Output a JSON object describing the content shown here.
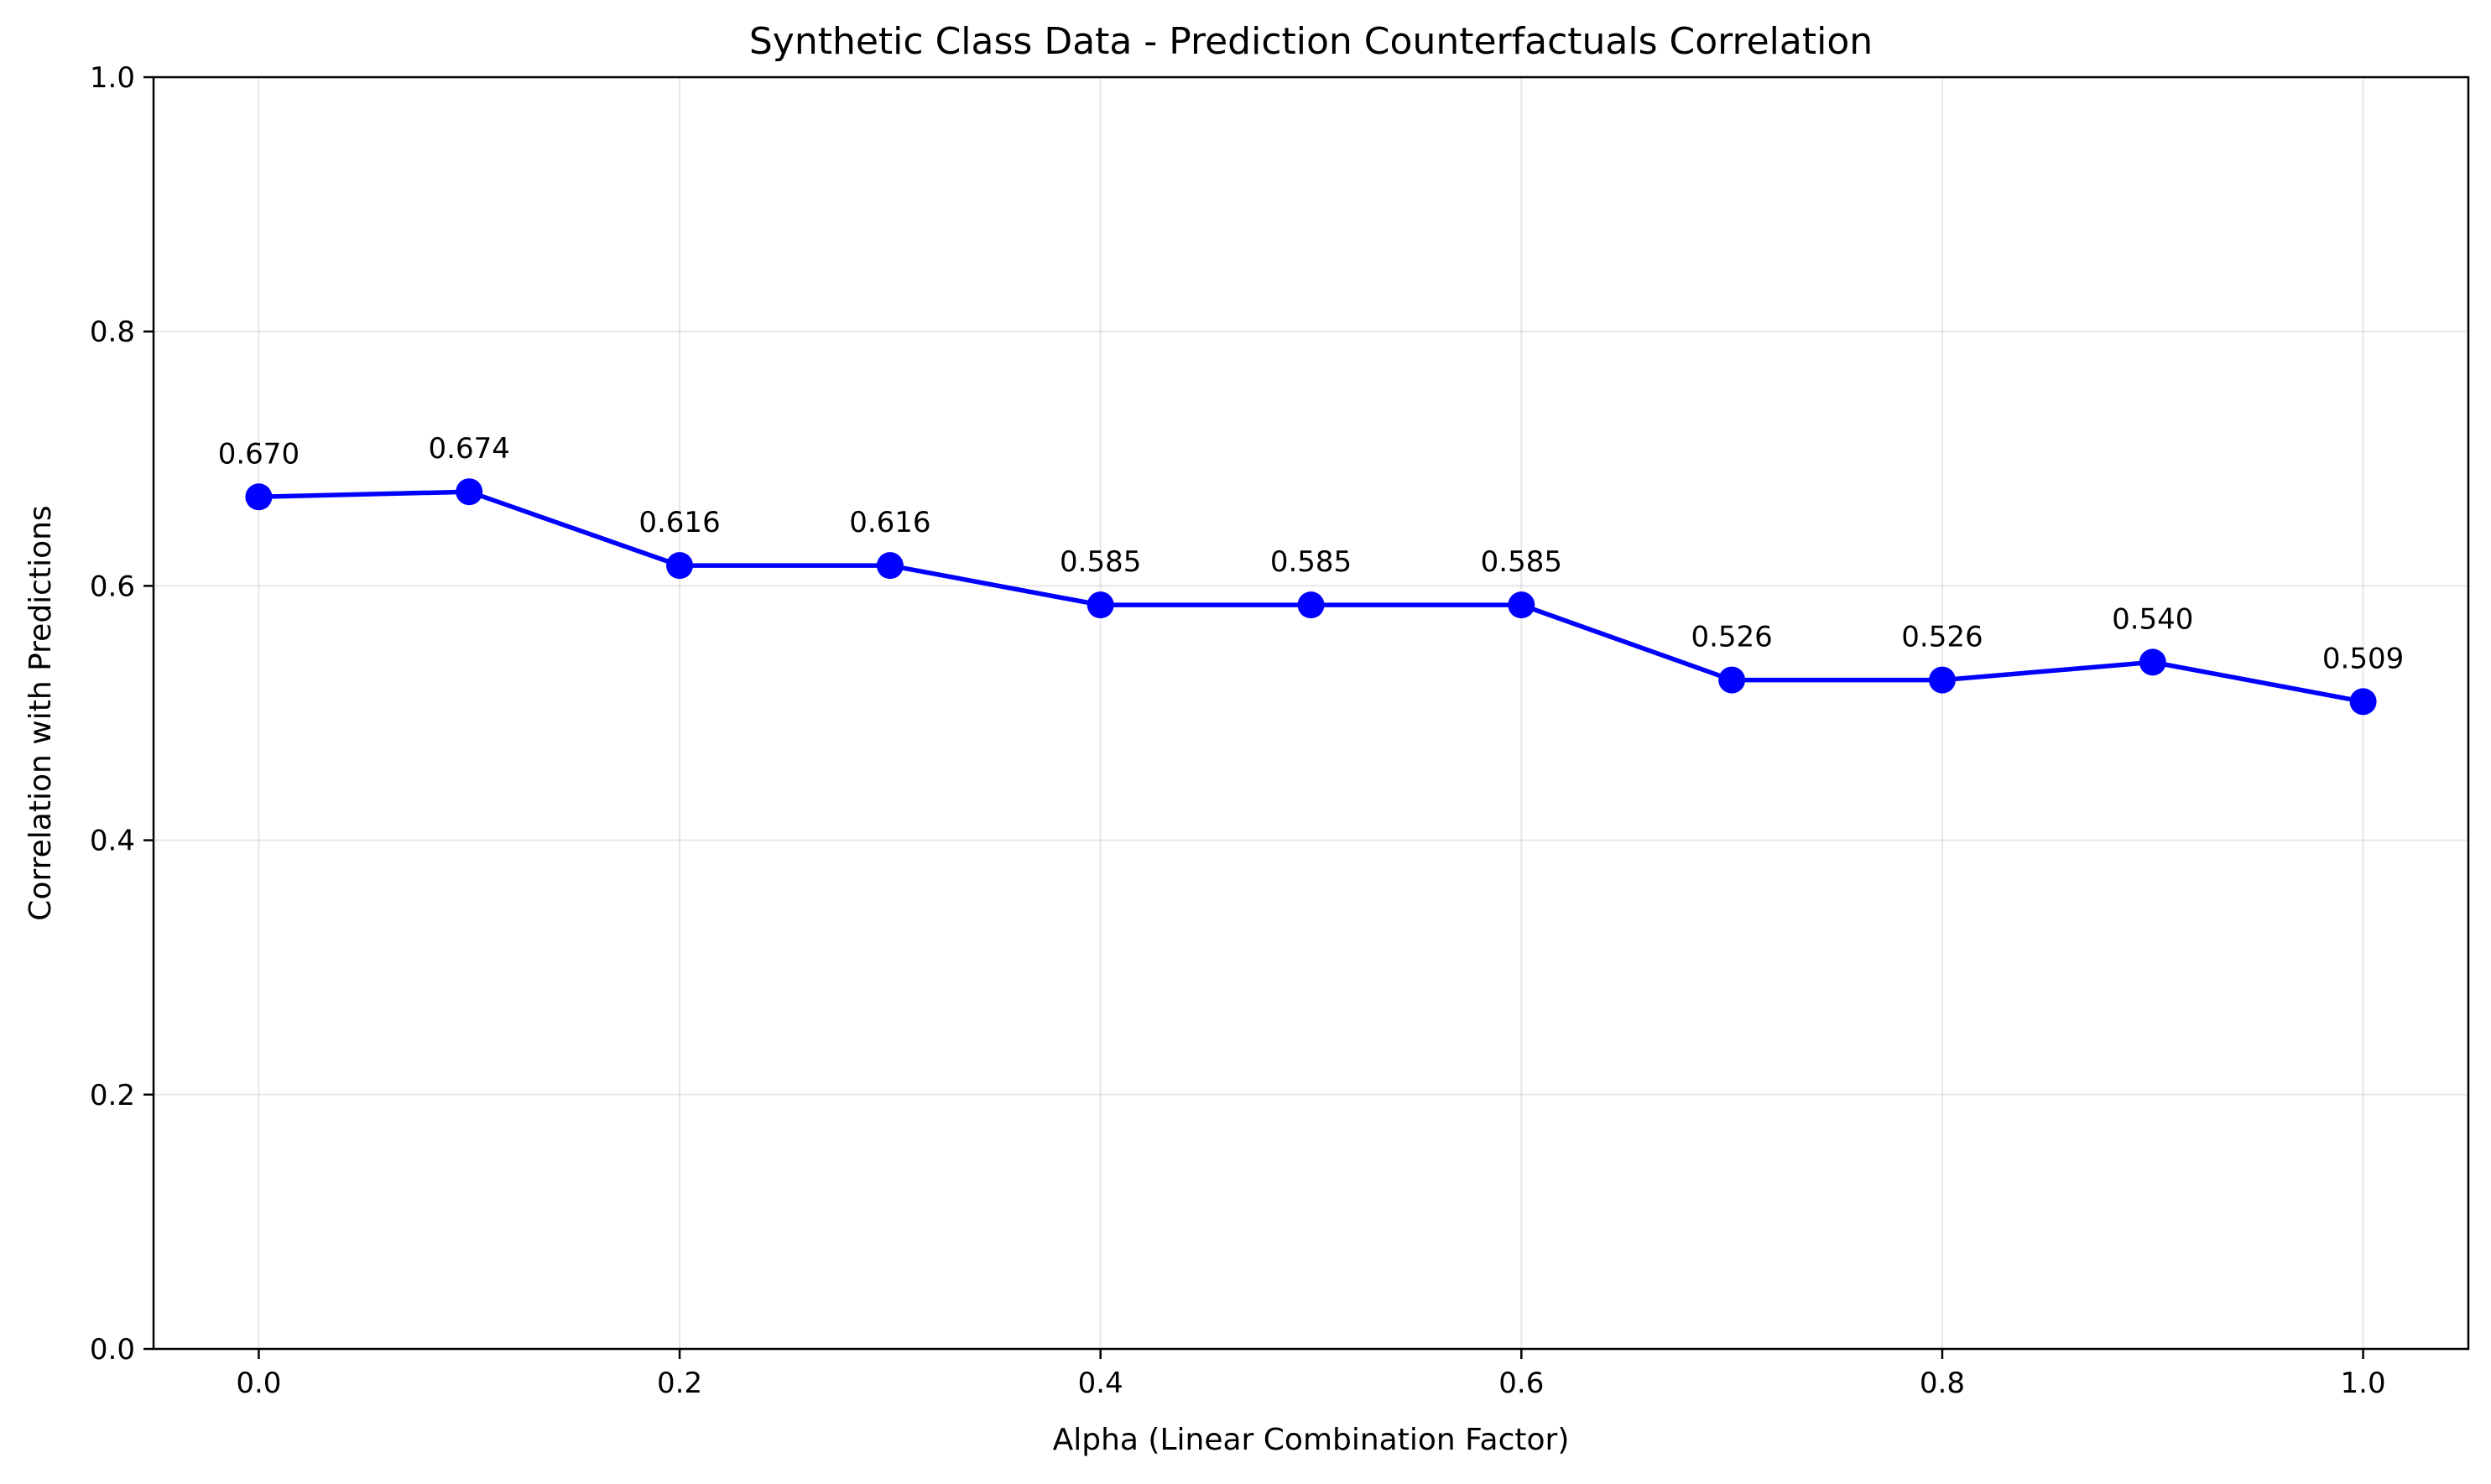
{
  "chart_data": {
    "type": "line",
    "title": "Synthetic Class Data - Prediction Counterfactuals Correlation",
    "xlabel": "Alpha (Linear Combination Factor)",
    "ylabel": "Correlation with Predictions",
    "x": [
      0.0,
      0.1,
      0.2,
      0.3,
      0.4,
      0.5,
      0.6,
      0.7,
      0.8,
      0.9,
      1.0
    ],
    "series": [
      {
        "values": [
          0.67,
          0.674,
          0.616,
          0.616,
          0.585,
          0.585,
          0.585,
          0.526,
          0.526,
          0.54,
          0.509
        ],
        "labels": [
          "0.670",
          "0.674",
          "0.616",
          "0.616",
          "0.585",
          "0.585",
          "0.585",
          "0.526",
          "0.526",
          "0.540",
          "0.509"
        ],
        "color": "#0000ff",
        "marker": "circle"
      }
    ],
    "xlim": [
      -0.05,
      1.05
    ],
    "ylim": [
      0.0,
      1.0
    ],
    "xticks": [
      "0.0",
      "0.2",
      "0.4",
      "0.6",
      "0.8",
      "1.0"
    ],
    "yticks": [
      "0.0",
      "0.2",
      "0.4",
      "0.6",
      "0.8",
      "1.0"
    ],
    "grid": true,
    "legend": "none"
  }
}
